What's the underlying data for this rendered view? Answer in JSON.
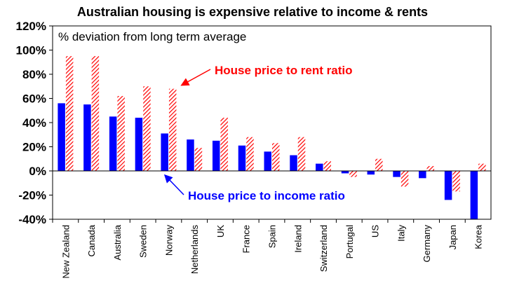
{
  "chart_data": {
    "type": "bar",
    "title": "Australian housing is expensive relative to income & rents",
    "subtitle": "% deviation from long term average",
    "ylim": [
      -40,
      120
    ],
    "yticks": [
      -40,
      -20,
      0,
      20,
      40,
      60,
      80,
      100,
      120
    ],
    "ytick_labels": [
      "-40%",
      "-20%",
      "0%",
      "20%",
      "40%",
      "60%",
      "80%",
      "100%",
      "120%"
    ],
    "categories": [
      "New Zealand",
      "Canada",
      "Australia",
      "Sweden",
      "Norway",
      "Netherlands",
      "UK",
      "France",
      "Spain",
      "Ireland",
      "Switzerland",
      "Portugal",
      "US",
      "Italy",
      "Germany",
      "Japan",
      "Korea"
    ],
    "series": [
      {
        "name": "House price to income ratio",
        "color": "#0000ff",
        "pattern": "solid",
        "values": [
          56,
          55,
          45,
          44,
          31,
          26,
          25,
          21,
          16,
          13,
          6,
          -2,
          -3,
          -5,
          -6,
          -24,
          -40
        ]
      },
      {
        "name": "House price to rent ratio",
        "color": "#ff0000",
        "pattern": "diagonal-hatch",
        "values": [
          95,
          95,
          62,
          70,
          68,
          19,
          44,
          28,
          23,
          28,
          8,
          -5,
          10,
          -13,
          4,
          -17,
          6
        ]
      }
    ],
    "grid": false
  }
}
